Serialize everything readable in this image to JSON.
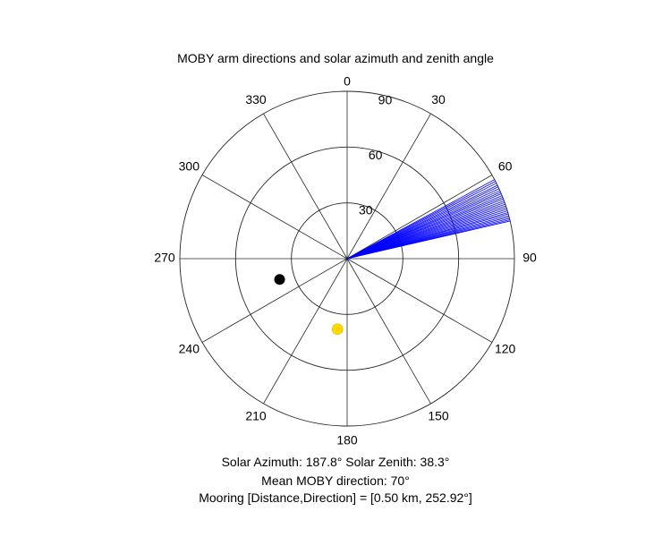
{
  "chart_data": {
    "type": "polar",
    "title": "MOBY arm directions and solar azimuth and zenith angle",
    "angle_ticks": [
      "0",
      "30",
      "60",
      "90",
      "120",
      "150",
      "180",
      "210",
      "240",
      "270",
      "300",
      "330"
    ],
    "angle_tick_values": [
      0,
      30,
      60,
      90,
      120,
      150,
      180,
      210,
      240,
      270,
      300,
      330
    ],
    "radial_ticks": [
      "30",
      "60",
      "90"
    ],
    "radial_tick_values": [
      30,
      60,
      90
    ],
    "rlim": [
      0,
      90
    ],
    "angle_zero": "top",
    "angle_direction": "clockwise",
    "grid": true,
    "series": [
      {
        "kind": "arm-direction-lines",
        "color": "#0000ff",
        "radius": 90,
        "angles": [
          61.8,
          62.5,
          63.2,
          64.0,
          64.6,
          65.3,
          66.0,
          66.6,
          67.2,
          67.9,
          68.5,
          69.1,
          69.8,
          70.4,
          71.0,
          71.6,
          72.2,
          72.8,
          73.4,
          74.0,
          74.5,
          75.1,
          75.6,
          76.1,
          76.6,
          77.0
        ]
      },
      {
        "kind": "solar-position",
        "color": "#ffd700",
        "azimuth": 187.8,
        "zenith": 38.3
      },
      {
        "kind": "mooring-direction",
        "color": "#000000",
        "direction": 252.92,
        "radius": 38
      }
    ]
  },
  "captions": {
    "solar": "Solar Azimuth: 187.8°   Solar Zenith: 38.3°",
    "mean": "Mean MOBY direction: 70°",
    "mooring": "Mooring [Distance,Direction] = [0.50 km, 252.92°]"
  }
}
